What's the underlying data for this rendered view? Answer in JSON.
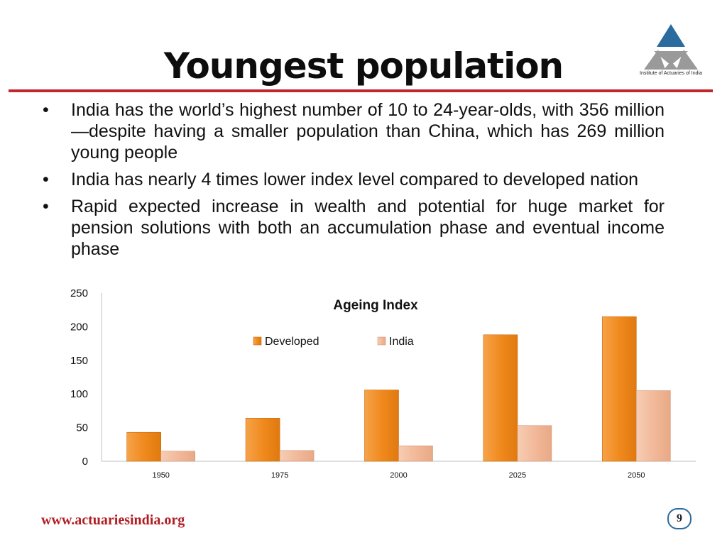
{
  "slide": {
    "title": "Youngest population",
    "logo_caption": "Institute of Actuaries of India",
    "bullets": [
      "India has the world’s highest number of 10 to 24-year-olds, with 356 million—despite having a smaller population than China, which has 269 million young people",
      "India has nearly 4 times lower index level compared to developed nation",
      "Rapid expected increase in wealth and potential for huge market for pension solutions with both an accumulation phase and eventual income phase"
    ],
    "footer_url": "www.actuariesindia.org",
    "page_number": "9"
  },
  "colors": {
    "accent_rule": "#c0282d",
    "developed": "#f08a1e",
    "india": "#f2b99a",
    "logo_blue": "#2b6b9e",
    "logo_grey": "#9a9a9a"
  },
  "chart_data": {
    "type": "bar",
    "title": "Ageing Index",
    "categories": [
      "1950",
      "1975",
      "2000",
      "2025",
      "2050"
    ],
    "series": [
      {
        "name": "Developed",
        "values": [
          43,
          64,
          106,
          188,
          215
        ]
      },
      {
        "name": "India",
        "values": [
          15,
          16,
          23,
          53,
          105
        ]
      }
    ],
    "ylim": [
      0,
      250
    ],
    "yticks": [
      "0",
      "50",
      "100",
      "150",
      "200",
      "250"
    ],
    "legend": "top-center",
    "grid": false
  }
}
